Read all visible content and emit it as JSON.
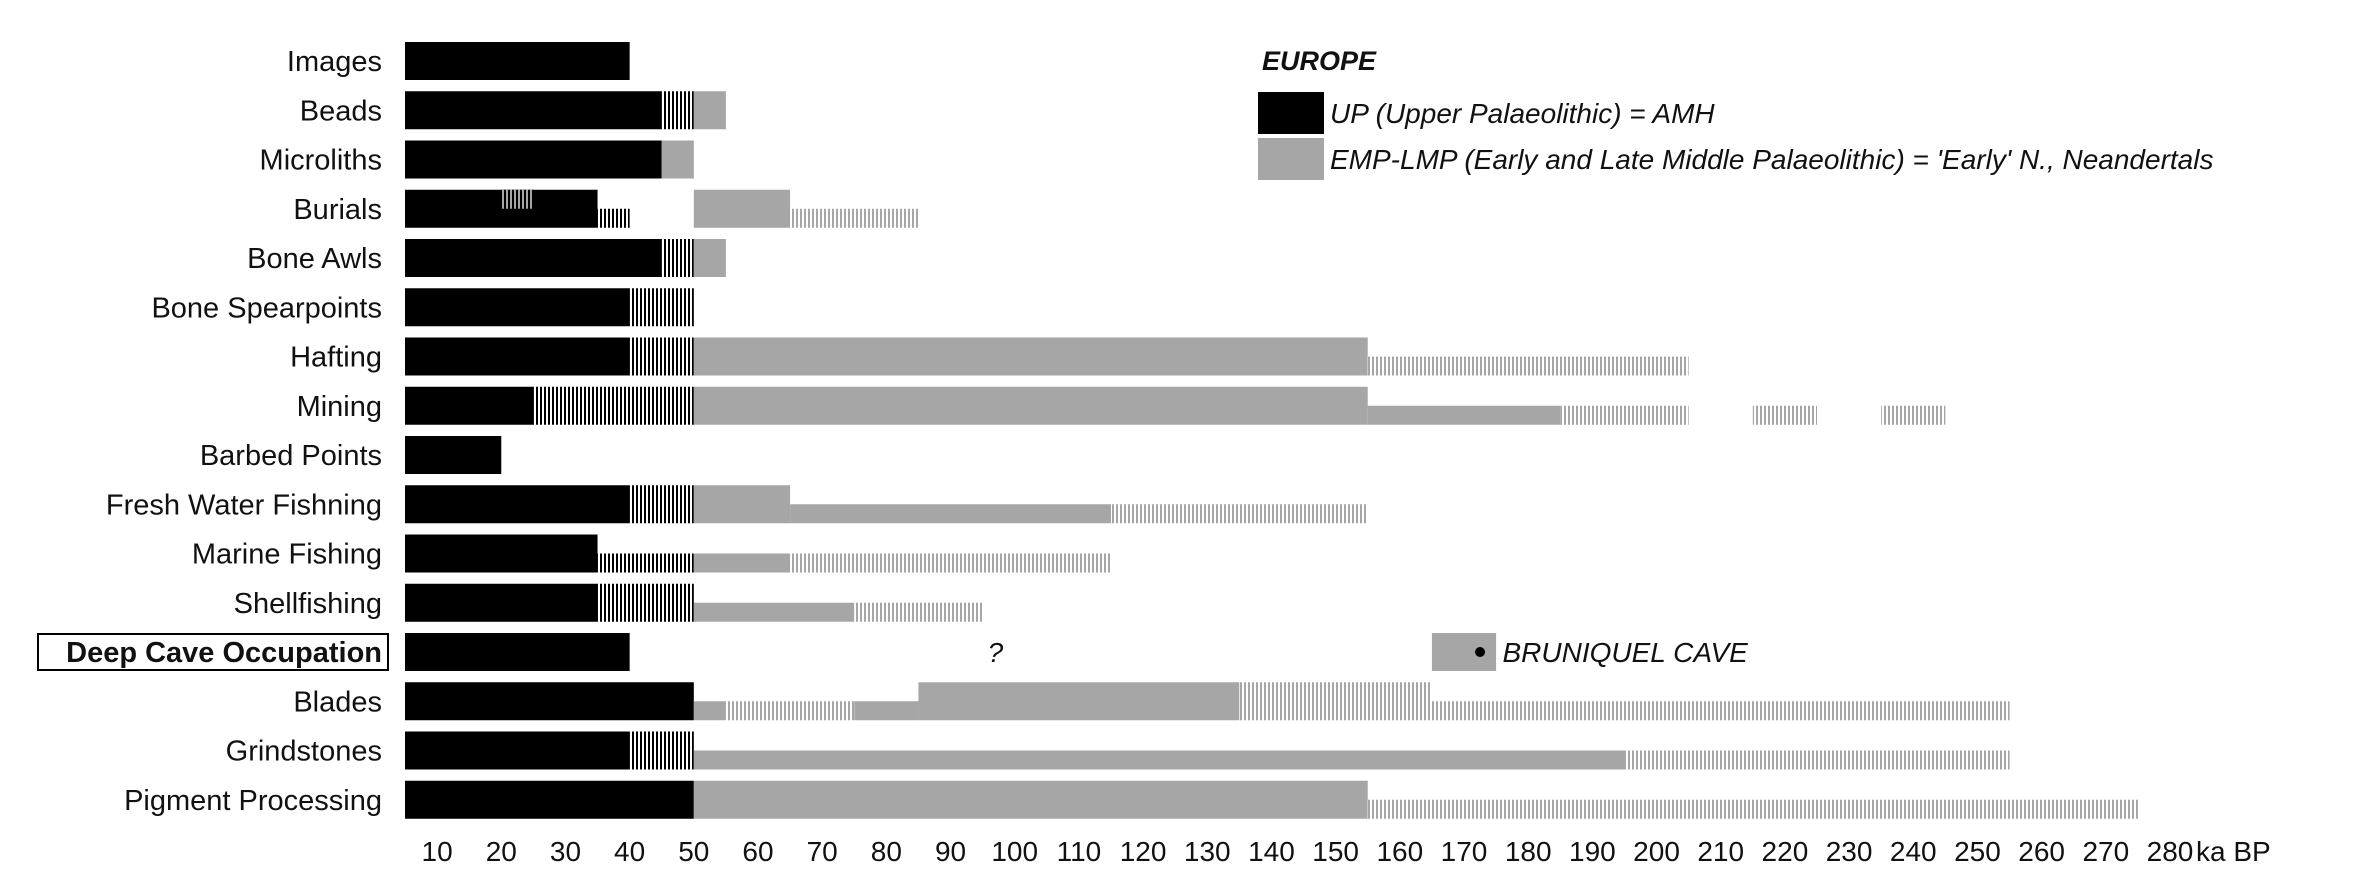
{
  "chart_data": {
    "type": "bar",
    "subtype": "horizontal-range-timeline",
    "title": "",
    "xlabel": "ka BP",
    "xlim": [
      5,
      280
    ],
    "x_ticks": [
      10,
      20,
      30,
      40,
      50,
      60,
      70,
      80,
      90,
      100,
      110,
      120,
      130,
      140,
      150,
      160,
      170,
      180,
      190,
      200,
      210,
      220,
      230,
      240,
      250,
      260,
      270,
      280
    ],
    "grid": false,
    "colors": {
      "up": "#000000",
      "emp_lmp": "#a6a6a6",
      "hatch_up": "#000000",
      "hatch_emp": "#a6a6a6"
    },
    "legend": {
      "placement": "top-right",
      "title": "EUROPE",
      "entries": [
        {
          "key": "up",
          "label": "UP (Upper Palaeolithic) = AMH"
        },
        {
          "key": "emp",
          "label": "EMP-LMP (Early and Late Middle Palaeolithic) = 'Early' N., Neandertals"
        }
      ]
    },
    "segment_styles": {
      "up_solid": "solid black bar: Upper Palaeolithic",
      "up_hatch": "hatched black: uncertain Upper Palaeolithic",
      "emp_solid": "solid grey bar: Middle Palaeolithic",
      "emp_hatch": "hatched grey: uncertain Middle Palaeolithic"
    },
    "rows": [
      {
        "label": "Images",
        "segments": [
          {
            "style": "up_solid",
            "start": 5,
            "end": 40,
            "size": "full"
          }
        ]
      },
      {
        "label": "Beads",
        "segments": [
          {
            "style": "up_solid",
            "start": 5,
            "end": 45,
            "size": "full"
          },
          {
            "style": "up_hatch",
            "start": 45,
            "end": 50,
            "size": "full"
          },
          {
            "style": "emp_solid",
            "start": 50,
            "end": 55,
            "size": "full"
          }
        ]
      },
      {
        "label": "Microliths",
        "segments": [
          {
            "style": "up_solid",
            "start": 5,
            "end": 45,
            "size": "full"
          },
          {
            "style": "emp_solid",
            "start": 45,
            "end": 50,
            "size": "full"
          }
        ]
      },
      {
        "label": "Burials",
        "segments": [
          {
            "style": "up_solid",
            "start": 5,
            "end": 35,
            "size": "full"
          },
          {
            "style": "up_hatch",
            "start": 35,
            "end": 40,
            "size": "thin"
          },
          {
            "style": "emp_solid",
            "start": 50,
            "end": 65,
            "size": "full"
          },
          {
            "style": "emp_hatch",
            "start": 65,
            "end": 85,
            "size": "thin"
          }
        ]
      },
      {
        "label": "Bone Awls",
        "segments": [
          {
            "style": "up_solid",
            "start": 5,
            "end": 45,
            "size": "full"
          },
          {
            "style": "up_hatch",
            "start": 45,
            "end": 50,
            "size": "full"
          },
          {
            "style": "emp_solid",
            "start": 50,
            "end": 55,
            "size": "full"
          }
        ]
      },
      {
        "label": "Bone Spearpoints",
        "segments": [
          {
            "style": "up_solid",
            "start": 5,
            "end": 40,
            "size": "full"
          },
          {
            "style": "up_hatch",
            "start": 40,
            "end": 50,
            "size": "full"
          }
        ]
      },
      {
        "label": "Hafting",
        "segments": [
          {
            "style": "up_solid",
            "start": 5,
            "end": 40,
            "size": "full"
          },
          {
            "style": "up_hatch",
            "start": 40,
            "end": 50,
            "size": "full"
          },
          {
            "style": "emp_solid",
            "start": 50,
            "end": 155,
            "size": "full"
          },
          {
            "style": "emp_hatch",
            "start": 155,
            "end": 205,
            "size": "thin"
          }
        ]
      },
      {
        "label": "Mining",
        "segments": [
          {
            "style": "up_solid",
            "start": 5,
            "end": 25,
            "size": "full"
          },
          {
            "style": "up_hatch",
            "start": 25,
            "end": 50,
            "size": "full"
          },
          {
            "style": "emp_solid",
            "start": 50,
            "end": 155,
            "size": "full"
          },
          {
            "style": "emp_solid",
            "start": 155,
            "end": 185,
            "size": "thin"
          },
          {
            "style": "emp_hatch",
            "start": 185,
            "end": 205,
            "size": "thin"
          },
          {
            "style": "emp_hatch",
            "start": 215,
            "end": 225,
            "size": "thin"
          },
          {
            "style": "emp_hatch",
            "start": 235,
            "end": 245,
            "size": "thin"
          }
        ]
      },
      {
        "label": "Barbed Points",
        "segments": [
          {
            "style": "up_solid",
            "start": 5,
            "end": 20,
            "size": "full"
          }
        ]
      },
      {
        "label": "Fresh Water Fishning",
        "segments": [
          {
            "style": "up_solid",
            "start": 5,
            "end": 40,
            "size": "full"
          },
          {
            "style": "up_hatch",
            "start": 40,
            "end": 50,
            "size": "full"
          },
          {
            "style": "emp_solid",
            "start": 50,
            "end": 65,
            "size": "full"
          },
          {
            "style": "emp_solid",
            "start": 65,
            "end": 115,
            "size": "thin"
          },
          {
            "style": "emp_hatch",
            "start": 115,
            "end": 155,
            "size": "thin"
          }
        ]
      },
      {
        "label": "Marine Fishing",
        "segments": [
          {
            "style": "up_solid",
            "start": 5,
            "end": 35,
            "size": "full"
          },
          {
            "style": "up_hatch",
            "start": 35,
            "end": 50,
            "size": "thin"
          },
          {
            "style": "emp_solid",
            "start": 50,
            "end": 65,
            "size": "thin"
          },
          {
            "style": "emp_hatch",
            "start": 65,
            "end": 115,
            "size": "thin"
          }
        ]
      },
      {
        "label": "Shellfishing",
        "segments": [
          {
            "style": "up_solid",
            "start": 5,
            "end": 35,
            "size": "full"
          },
          {
            "style": "up_hatch",
            "start": 35,
            "end": 50,
            "size": "full"
          },
          {
            "style": "emp_solid",
            "start": 50,
            "end": 75,
            "size": "thin"
          },
          {
            "style": "emp_hatch",
            "start": 75,
            "end": 95,
            "size": "thin"
          }
        ]
      },
      {
        "label": "Deep Cave Occupation",
        "boxed": true,
        "segments": [
          {
            "style": "up_solid",
            "start": 5,
            "end": 40,
            "size": "full"
          },
          {
            "style": "emp_solid",
            "start": 165,
            "end": 175,
            "size": "full"
          }
        ]
      },
      {
        "label": "Blades",
        "segments": [
          {
            "style": "up_solid",
            "start": 5,
            "end": 50,
            "size": "full"
          },
          {
            "style": "emp_solid",
            "start": 50,
            "end": 55,
            "size": "thin"
          },
          {
            "style": "emp_hatch",
            "start": 55,
            "end": 75,
            "size": "thin"
          },
          {
            "style": "emp_solid",
            "start": 75,
            "end": 85,
            "size": "thin"
          },
          {
            "style": "emp_solid",
            "start": 85,
            "end": 135,
            "size": "full"
          },
          {
            "style": "emp_hatch",
            "start": 135,
            "end": 165,
            "size": "full"
          },
          {
            "style": "emp_hatch",
            "start": 165,
            "end": 255,
            "size": "thin"
          }
        ]
      },
      {
        "label": "Grindstones",
        "segments": [
          {
            "style": "up_solid",
            "start": 5,
            "end": 40,
            "size": "full"
          },
          {
            "style": "up_hatch",
            "start": 40,
            "end": 50,
            "size": "full"
          },
          {
            "style": "emp_solid",
            "start": 50,
            "end": 195,
            "size": "thin"
          },
          {
            "style": "emp_hatch",
            "start": 195,
            "end": 255,
            "size": "thin"
          }
        ]
      },
      {
        "label": "Pigment Processing",
        "segments": [
          {
            "style": "up_solid",
            "start": 5,
            "end": 50,
            "size": "full"
          },
          {
            "style": "emp_solid",
            "start": 50,
            "end": 155,
            "size": "full"
          },
          {
            "style": "emp_hatch",
            "start": 155,
            "end": 275,
            "size": "thin"
          }
        ]
      }
    ],
    "overlays": [
      {
        "row": "Burials",
        "style": "up_hatch_on_black",
        "start": 20,
        "end": 25
      }
    ],
    "annotations": [
      {
        "text": "?",
        "row": "Deep Cave Occupation",
        "x": 97
      },
      {
        "text": "BRUNIQUEL CAVE",
        "row": "Deep Cave Occupation",
        "x": 176,
        "marker_x": 172.5
      }
    ]
  }
}
